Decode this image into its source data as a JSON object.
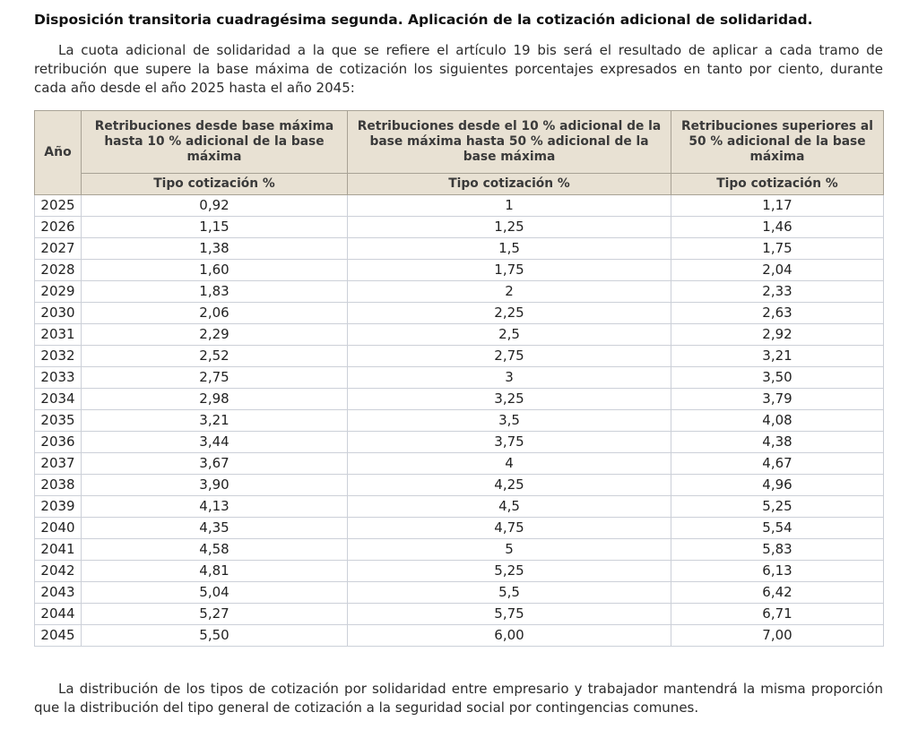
{
  "page": {
    "title": "Disposición transitoria cuadragésima segunda. Aplicación de la cotización adicional de solidaridad.",
    "intro_paragraph": "La cuota adicional de solidaridad a la que se refiere el artículo 19 bis será el resultado de aplicar a cada tramo de retribución que supere la base máxima de cotización los siguientes porcentajes expresados en tanto por ciento, durante cada año desde el año 2025 hasta el año 2045:",
    "closing_paragraph": "La distribución de los tipos de cotización por solidaridad entre empresario y trabajador mantendrá la misma proporción que la distribución del tipo general de cotización a la seguridad social por contingencias comunes."
  },
  "table": {
    "year_header": "Año",
    "column_headers": [
      "Retribuciones desde base máxima hasta 10 % adicional de la base máxima",
      "Retribuciones desde el 10 % adicional de la base máxima hasta 50 % adicional de la base máxima",
      "Retribuciones superiores al 50 % adicional de la base máxima"
    ],
    "subheader": "Tipo cotización %",
    "rows": [
      {
        "year": "2025",
        "values": [
          "0,92",
          "1",
          "1,17"
        ]
      },
      {
        "year": "2026",
        "values": [
          "1,15",
          "1,25",
          "1,46"
        ]
      },
      {
        "year": "2027",
        "values": [
          "1,38",
          "1,5",
          "1,75"
        ]
      },
      {
        "year": "2028",
        "values": [
          "1,60",
          "1,75",
          "2,04"
        ]
      },
      {
        "year": "2029",
        "values": [
          "1,83",
          "2",
          "2,33"
        ]
      },
      {
        "year": "2030",
        "values": [
          "2,06",
          "2,25",
          "2,63"
        ]
      },
      {
        "year": "2031",
        "values": [
          "2,29",
          "2,5",
          "2,92"
        ]
      },
      {
        "year": "2032",
        "values": [
          "2,52",
          "2,75",
          "3,21"
        ]
      },
      {
        "year": "2033",
        "values": [
          "2,75",
          "3",
          "3,50"
        ]
      },
      {
        "year": "2034",
        "values": [
          "2,98",
          "3,25",
          "3,79"
        ]
      },
      {
        "year": "2035",
        "values": [
          "3,21",
          "3,5",
          "4,08"
        ]
      },
      {
        "year": "2036",
        "values": [
          "3,44",
          "3,75",
          "4,38"
        ]
      },
      {
        "year": "2037",
        "values": [
          "3,67",
          "4",
          "4,67"
        ]
      },
      {
        "year": "2038",
        "values": [
          "3,90",
          "4,25",
          "4,96"
        ]
      },
      {
        "year": "2039",
        "values": [
          "4,13",
          "4,5",
          "5,25"
        ]
      },
      {
        "year": "2040",
        "values": [
          "4,35",
          "4,75",
          "5,54"
        ]
      },
      {
        "year": "2041",
        "values": [
          "4,58",
          "5",
          "5,83"
        ]
      },
      {
        "year": "2042",
        "values": [
          "4,81",
          "5,25",
          "6,13"
        ]
      },
      {
        "year": "2043",
        "values": [
          "5,04",
          "5,5",
          "6,42"
        ]
      },
      {
        "year": "2044",
        "values": [
          "5,27",
          "5,75",
          "6,71"
        ]
      },
      {
        "year": "2045",
        "values": [
          "5,50",
          "6,00",
          "7,00"
        ]
      }
    ]
  },
  "colors": {
    "header_background": "#e8e1d3",
    "header_border": "#a8a295",
    "body_border": "#ccd0d8",
    "text": "#2b2b2b"
  }
}
